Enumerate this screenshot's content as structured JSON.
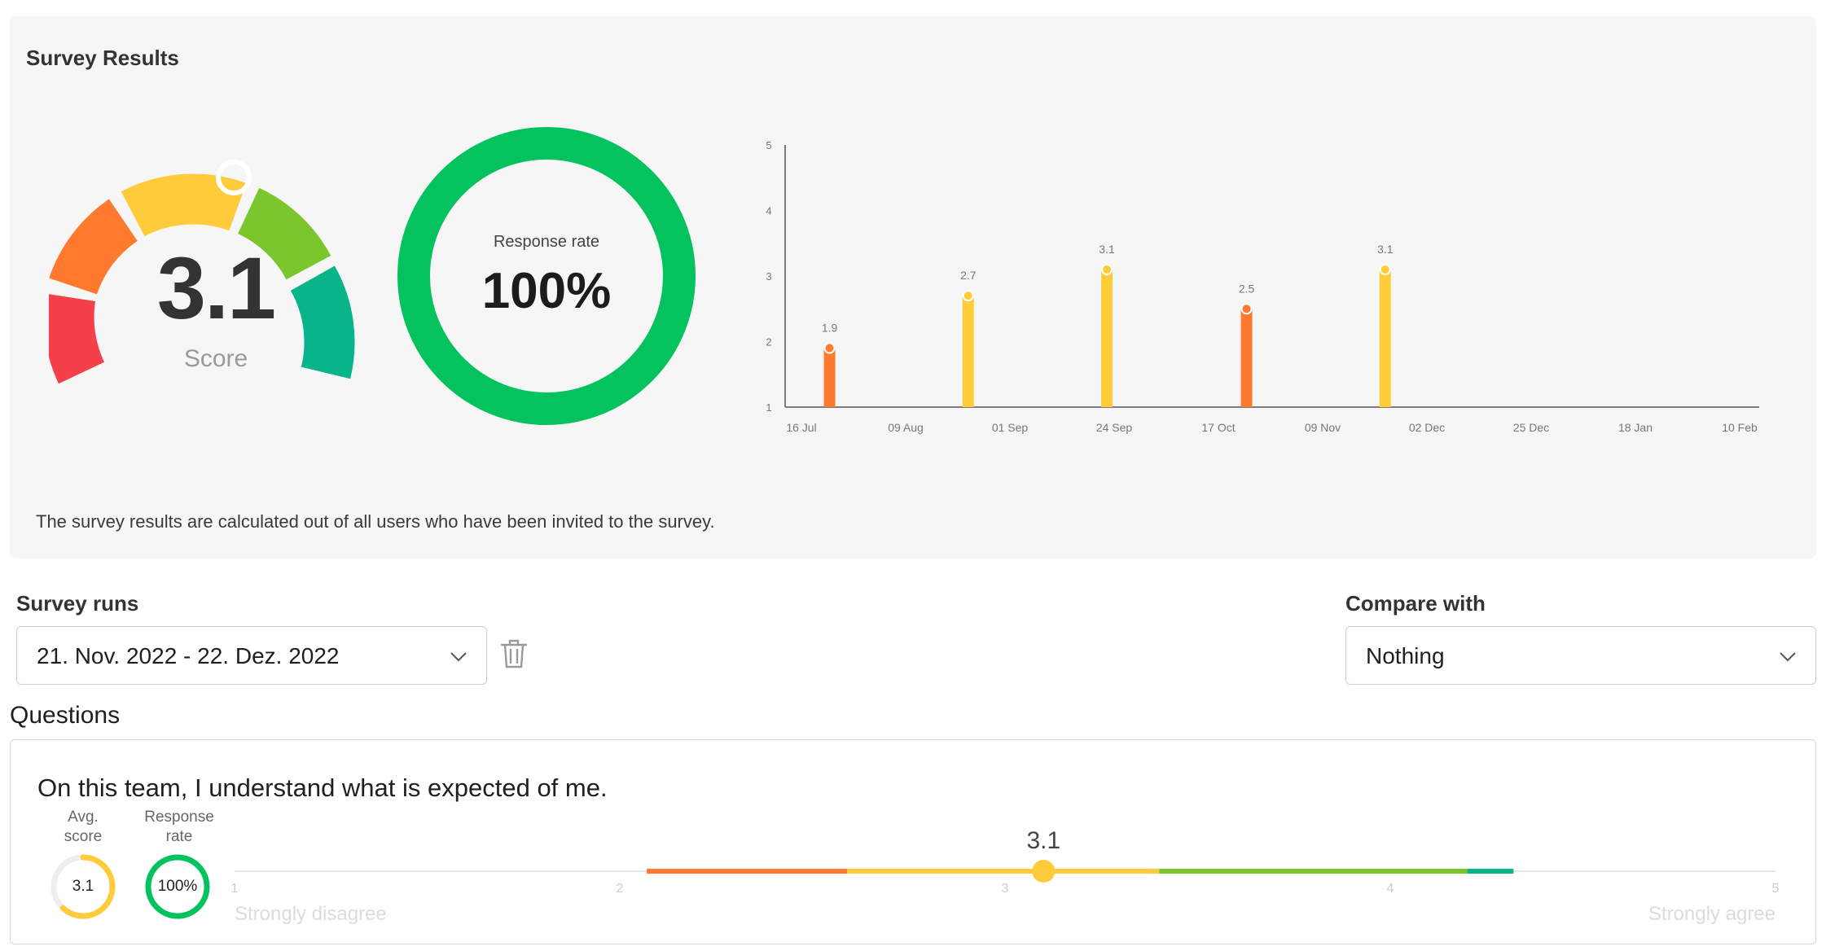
{
  "survey_results": {
    "title": "Survey Results",
    "score": "3.1",
    "score_label": "Score",
    "response_rate_label": "Response rate",
    "response_rate_value": "100%",
    "note": "The survey results are calculated out of all users who have been invited to the survey.",
    "gauge_colors": [
      "#f5404a",
      "#ff7a2e",
      "#fecb3b",
      "#7bc62d",
      "#08b58b"
    ]
  },
  "chart_data": {
    "type": "bar",
    "x_ticks": [
      "16 Jul",
      "09 Aug",
      "01 Sep",
      "24 Sep",
      "17 Oct",
      "09 Nov",
      "02 Dec",
      "25 Dec",
      "18 Jan",
      "10 Feb"
    ],
    "y_ticks": [
      "1",
      "2",
      "3",
      "4",
      "5"
    ],
    "ylim": [
      1,
      5
    ],
    "bars": [
      {
        "label": "1.9",
        "value": 1.9,
        "x_pos": 0.27,
        "color": "#ff7a2e"
      },
      {
        "label": "2.7",
        "value": 2.7,
        "x_pos": 1.6,
        "color": "#fecb3b"
      },
      {
        "label": "3.1",
        "value": 3.1,
        "x_pos": 2.93,
        "color": "#fecb3b"
      },
      {
        "label": "2.5",
        "value": 2.5,
        "x_pos": 4.27,
        "color": "#ff7a2e"
      },
      {
        "label": "3.1",
        "value": 3.1,
        "x_pos": 5.6,
        "color": "#fecb3b"
      }
    ],
    "grid": false
  },
  "survey_runs": {
    "label": "Survey runs",
    "selected": "21. Nov. 2022 - 22. Dez. 2022"
  },
  "compare_with": {
    "label": "Compare with",
    "selected": "Nothing"
  },
  "questions": {
    "heading": "Questions",
    "items": [
      {
        "text": "On this team, I understand what is expected of me.",
        "avg_score_label_1": "Avg.",
        "avg_score_label_2": "score",
        "avg_score": "3.1",
        "response_label_1": "Response",
        "response_label_2": "rate",
        "response_rate": "100%",
        "scale_value_label": "3.1",
        "scale_value": 3.1,
        "scale_ticks": [
          "1",
          "2",
          "3",
          "4",
          "5"
        ],
        "scale_left_label": "Strongly disagree",
        "scale_right_label": "Strongly agree"
      }
    ]
  }
}
